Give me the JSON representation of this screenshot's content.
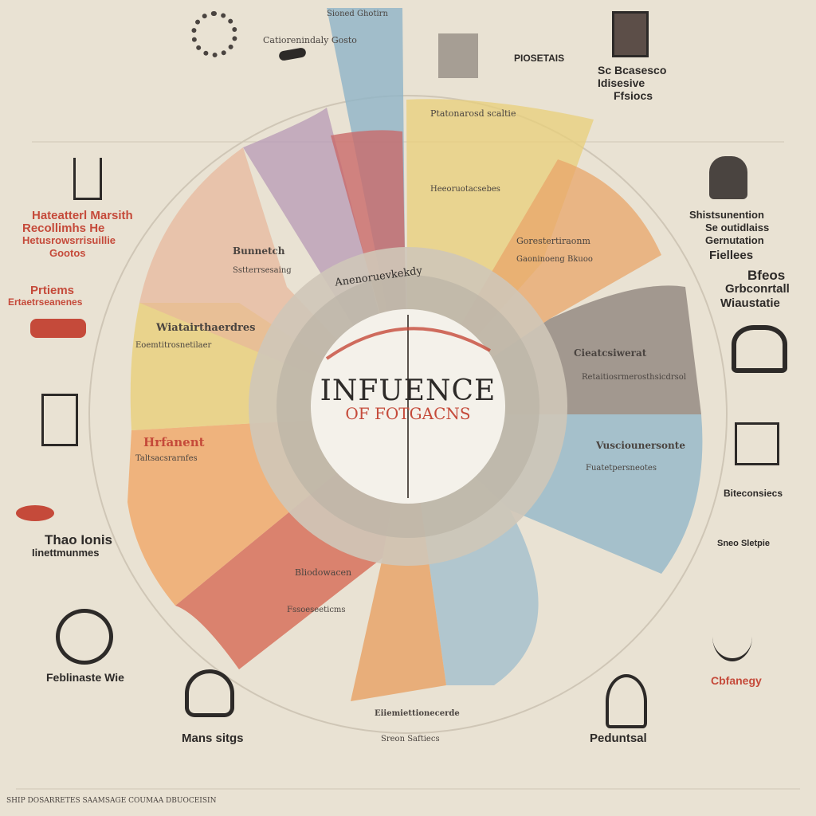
{
  "center": {
    "title": "INFUENCE",
    "subtitle": "OF FOTGACNS",
    "ring_text": "Anenoruevkekdy"
  },
  "colors": {
    "background": "#e9e2d3",
    "red": "#c54a3a",
    "blue": "#8eb4c8",
    "yellow": "#e8cf7a",
    "orange": "#e8a56a",
    "purple": "#b79ab5",
    "gray": "#8a7f78"
  },
  "top": {
    "tab_label": "Sioned Ghotirn",
    "header_left": "Catiorenindaly Gosto",
    "header_right": "PIOSETAIS",
    "box_right_title": "Sc Bcasesco",
    "box_right_line2": "Idisesive",
    "box_right_line3": "Ffsiocs"
  },
  "left_panels": [
    {
      "title": "Hateatterl Marsith",
      "line2": "Recollimhs He",
      "line3": "Hetusrowsrrisuillie",
      "line4": "Gootos"
    },
    {
      "title": "Prtiems",
      "line2": "Ertaetrseanenes"
    },
    {
      "title": "Thao Ionis",
      "line2": "Iinettmunmes"
    },
    {
      "title": "Feblinaste Wie"
    }
  ],
  "right_panels": [
    {
      "title": "Shistsunention",
      "line2": "Se outidlaiss",
      "line3": "Gernutation",
      "line4": "Fiellees"
    },
    {
      "title": "Bfeos",
      "line2": "Grbconrtall",
      "line3": "Wiaustatie"
    },
    {
      "title": "Biteconsiecs",
      "line2": "Sneo Sletpie"
    },
    {
      "title": "Cbfanegy"
    }
  ],
  "segments": [
    {
      "label": "Bunnetch",
      "body": "Sstterrsesaing"
    },
    {
      "label": "Wiatairthaerdres",
      "body": "Eoemtitrosnetilaer"
    },
    {
      "label": "Hrfanent",
      "body": "Taltsacsrarnfes"
    },
    {
      "label": "Cieatcsiwerat",
      "body": "Retaitiosrmerosthsicdrsol"
    },
    {
      "label": "Vusciounersonte",
      "body": "Fuatetpersneotes"
    },
    {
      "label": "Ptatonarosd scaltie",
      "body": "Heeoruotacsebes"
    },
    {
      "label": "Gorestertiraonm",
      "body": "Gaoninoeng Bkuoo"
    },
    {
      "label": "Bliodowacen",
      "body": "Fssoeseeticms"
    }
  ],
  "bottom": {
    "left_title": "Mans sitgs",
    "right_title": "Peduntsal",
    "center_label": "Eiiemiettionecerde",
    "center_line2": "Sreon Saftiecs",
    "footer": "SHIP DOSARRETES SAAMSAGE COUMAA DBUOCEISIN"
  }
}
